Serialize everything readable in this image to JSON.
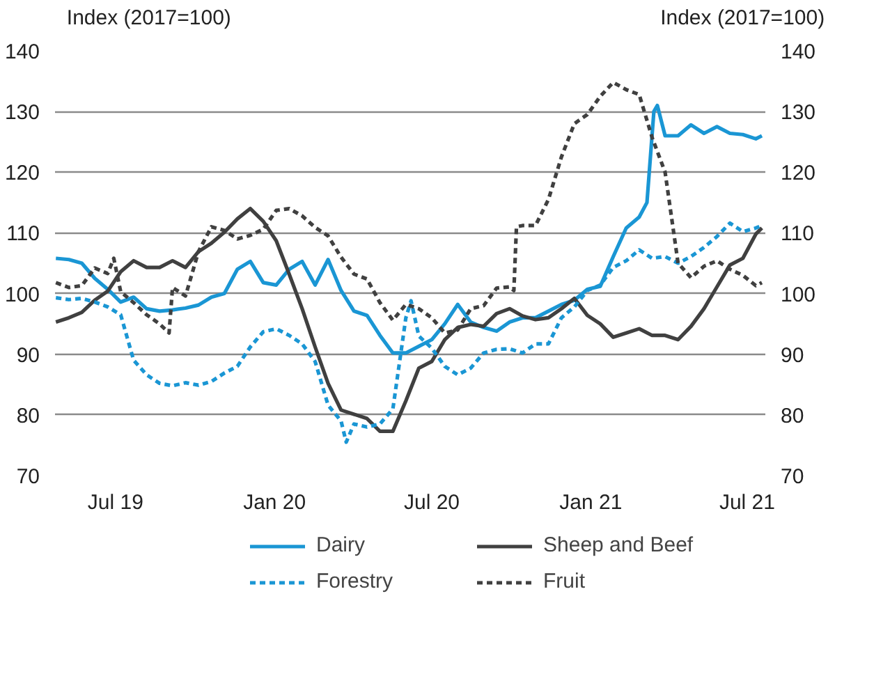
{
  "chart_data": {
    "type": "line",
    "ylabel": "Index (2017=100)",
    "y2label": "Index (2017=100)",
    "xlim": [
      "2019-04-22",
      "2021-07-22"
    ],
    "xticks": [
      {
        "value": "2019-07-01",
        "label": "Jul 19"
      },
      {
        "value": "2020-01-01",
        "label": "Jan 20"
      },
      {
        "value": "2020-07-01",
        "label": "Jul 20"
      },
      {
        "value": "2021-01-01",
        "label": "Jan 21"
      },
      {
        "value": "2021-07-01",
        "label": "Jul 21"
      }
    ],
    "ylim": [
      70,
      140
    ],
    "yticks": [
      70,
      80,
      90,
      100,
      110,
      120,
      130,
      140
    ],
    "y2lim": [
      70,
      140
    ],
    "y2ticks": [
      70,
      80,
      90,
      100,
      110,
      120,
      130,
      140
    ],
    "grid": "y",
    "legend": "bottom",
    "series": [
      {
        "name": "Dairy",
        "color": "#1a96d4",
        "line_style": "solid",
        "x": [
          "2019-04-23",
          "2019-05-08",
          "2019-05-23",
          "2019-06-07",
          "2019-06-22",
          "2019-07-07",
          "2019-07-22",
          "2019-08-06",
          "2019-08-21",
          "2019-09-05",
          "2019-09-20",
          "2019-10-05",
          "2019-10-20",
          "2019-11-04",
          "2019-11-19",
          "2019-12-04",
          "2019-12-19",
          "2020-01-03",
          "2020-01-18",
          "2020-02-02",
          "2020-02-17",
          "2020-03-03",
          "2020-03-18",
          "2020-04-02",
          "2020-04-17",
          "2020-05-02",
          "2020-05-17",
          "2020-06-01",
          "2020-06-16",
          "2020-07-01",
          "2020-07-16",
          "2020-07-31",
          "2020-08-15",
          "2020-08-30",
          "2020-09-14",
          "2020-09-29",
          "2020-10-14",
          "2020-10-29",
          "2020-11-13",
          "2020-11-28",
          "2020-12-13",
          "2020-12-28",
          "2021-01-12",
          "2021-01-27",
          "2021-02-11",
          "2021-02-26",
          "2021-03-07",
          "2021-03-15",
          "2021-03-19",
          "2021-03-28",
          "2021-04-12",
          "2021-04-27",
          "2021-05-12",
          "2021-05-27",
          "2021-06-11",
          "2021-06-26",
          "2021-07-11",
          "2021-07-18"
        ],
        "values": [
          105.8,
          105.6,
          105,
          102.5,
          100.7,
          98.6,
          99.4,
          97.5,
          97.1,
          97.3,
          97.6,
          98.1,
          99.4,
          100,
          104,
          105.3,
          101.8,
          101.4,
          104,
          105.3,
          101.4,
          105.6,
          100.5,
          97.1,
          96.4,
          93.1,
          90.2,
          90.2,
          91.3,
          92.4,
          95,
          98.2,
          95.3,
          94.4,
          93.8,
          95.3,
          96,
          96,
          97.1,
          98.2,
          98.9,
          100.7,
          101.2,
          106.1,
          110.8,
          112.6,
          115,
          130,
          131,
          126,
          126,
          127.8,
          126.4,
          127.5,
          126.4,
          126.2,
          125.5,
          126
        ]
      },
      {
        "name": "Sheep and Beef",
        "color": "#404040",
        "line_style": "solid",
        "x": [
          "2019-04-23",
          "2019-05-08",
          "2019-05-23",
          "2019-06-07",
          "2019-06-22",
          "2019-07-07",
          "2019-07-22",
          "2019-08-06",
          "2019-08-21",
          "2019-09-05",
          "2019-09-20",
          "2019-10-05",
          "2019-10-20",
          "2019-11-04",
          "2019-11-19",
          "2019-12-04",
          "2019-12-19",
          "2020-01-03",
          "2020-01-18",
          "2020-02-02",
          "2020-02-17",
          "2020-03-03",
          "2020-03-18",
          "2020-04-02",
          "2020-04-17",
          "2020-05-02",
          "2020-05-17",
          "2020-06-01",
          "2020-06-16",
          "2020-07-01",
          "2020-07-16",
          "2020-07-31",
          "2020-08-15",
          "2020-08-30",
          "2020-09-14",
          "2020-09-29",
          "2020-10-14",
          "2020-10-29",
          "2020-11-13",
          "2020-11-28",
          "2020-12-13",
          "2020-12-28",
          "2021-01-12",
          "2021-01-27",
          "2021-02-11",
          "2021-02-26",
          "2021-03-13",
          "2021-03-28",
          "2021-04-12",
          "2021-04-27",
          "2021-05-12",
          "2021-05-27",
          "2021-06-11",
          "2021-06-26",
          "2021-07-11",
          "2021-07-18"
        ],
        "values": [
          95.3,
          96,
          96.9,
          98.9,
          100.4,
          103.6,
          105.4,
          104.3,
          104.3,
          105.4,
          104.3,
          106.9,
          108.3,
          110.1,
          112.3,
          114,
          111.9,
          108.7,
          103.2,
          97.5,
          91.2,
          85.2,
          80.8,
          80.1,
          79.4,
          77.3,
          77.3,
          82.3,
          87.7,
          88.8,
          92.4,
          94.4,
          94.9,
          94.6,
          96.7,
          97.5,
          96.3,
          95.7,
          96,
          97.5,
          99.2,
          96.4,
          95,
          92.8,
          93.5,
          94.2,
          93.1,
          93.1,
          92.4,
          94.6,
          97.5,
          101.1,
          104.7,
          105.8,
          109.8,
          110.8
        ]
      },
      {
        "name": "Forestry",
        "color": "#1a96d4",
        "line_style": "dashed",
        "x": [
          "2019-04-23",
          "2019-05-08",
          "2019-05-23",
          "2019-06-07",
          "2019-06-22",
          "2019-07-07",
          "2019-07-22",
          "2019-08-06",
          "2019-08-21",
          "2019-09-05",
          "2019-09-20",
          "2019-10-05",
          "2019-10-20",
          "2019-11-04",
          "2019-11-19",
          "2019-12-04",
          "2019-12-19",
          "2020-01-03",
          "2020-01-18",
          "2020-02-02",
          "2020-02-17",
          "2020-03-03",
          "2020-03-18",
          "2020-03-24",
          "2020-04-02",
          "2020-04-17",
          "2020-05-02",
          "2020-05-17",
          "2020-06-01",
          "2020-06-07",
          "2020-06-16",
          "2020-07-01",
          "2020-07-16",
          "2020-07-31",
          "2020-08-15",
          "2020-08-30",
          "2020-09-14",
          "2020-09-29",
          "2020-10-14",
          "2020-10-29",
          "2020-11-13",
          "2020-11-28",
          "2020-12-13",
          "2020-12-28",
          "2021-01-12",
          "2021-01-27",
          "2021-02-11",
          "2021-02-26",
          "2021-03-13",
          "2021-03-28",
          "2021-04-12",
          "2021-04-27",
          "2021-05-12",
          "2021-05-27",
          "2021-06-11",
          "2021-06-26",
          "2021-07-11",
          "2021-07-18"
        ],
        "values": [
          99.3,
          99,
          99.2,
          98.6,
          97.8,
          96.5,
          89,
          86.6,
          85.2,
          84.8,
          85.3,
          84.9,
          85.5,
          86.9,
          88,
          91.2,
          93.7,
          94.2,
          93.1,
          91.7,
          88.8,
          81.6,
          79,
          75.5,
          78.5,
          78,
          78.5,
          81,
          96,
          98.8,
          93,
          91,
          88,
          86.6,
          87.7,
          90.2,
          90.8,
          90.9,
          90.2,
          91.7,
          91.7,
          96,
          97.8,
          100.5,
          101.4,
          104.3,
          105.4,
          107.2,
          105.8,
          106.1,
          105,
          106.1,
          107.6,
          109.4,
          111.6,
          110.2,
          110.8,
          111.2
        ]
      },
      {
        "name": "Fruit",
        "color": "#404040",
        "line_style": "dashed",
        "x": [
          "2019-04-23",
          "2019-05-08",
          "2019-05-23",
          "2019-06-07",
          "2019-06-22",
          "2019-06-29",
          "2019-07-07",
          "2019-07-22",
          "2019-08-06",
          "2019-08-21",
          "2019-09-01",
          "2019-09-05",
          "2019-09-20",
          "2019-10-05",
          "2019-10-20",
          "2019-11-04",
          "2019-11-19",
          "2019-12-04",
          "2019-12-19",
          "2020-01-03",
          "2020-01-18",
          "2020-02-02",
          "2020-02-17",
          "2020-03-03",
          "2020-03-18",
          "2020-04-02",
          "2020-04-17",
          "2020-05-02",
          "2020-05-17",
          "2020-06-01",
          "2020-06-16",
          "2020-07-01",
          "2020-07-16",
          "2020-07-31",
          "2020-08-15",
          "2020-08-30",
          "2020-09-14",
          "2020-09-29",
          "2020-10-04",
          "2020-10-07",
          "2020-10-14",
          "2020-10-29",
          "2020-11-13",
          "2020-11-28",
          "2020-12-13",
          "2020-12-28",
          "2021-01-12",
          "2021-01-27",
          "2021-02-11",
          "2021-02-26",
          "2021-03-13",
          "2021-03-28",
          "2021-04-12",
          "2021-04-27",
          "2021-05-12",
          "2021-05-27",
          "2021-06-11",
          "2021-06-26",
          "2021-07-11",
          "2021-07-18"
        ],
        "values": [
          101.8,
          101,
          101.3,
          104.2,
          103.3,
          105.8,
          100.3,
          98.5,
          96.5,
          95,
          93.5,
          101,
          99.6,
          106.9,
          111,
          110.4,
          109,
          109.6,
          110.6,
          113.7,
          114,
          112.8,
          110.9,
          109.5,
          106,
          103.2,
          102.4,
          98.5,
          95.6,
          98.2,
          97.5,
          96,
          93.5,
          94,
          97.5,
          98,
          100.9,
          101.1,
          100.5,
          111,
          111.2,
          111.2,
          115.5,
          122.5,
          128,
          129.5,
          132.5,
          134.8,
          133.6,
          132.8,
          125.7,
          120,
          105,
          102.6,
          104.5,
          105.4,
          104,
          103,
          101.3,
          101.8
        ]
      }
    ]
  }
}
